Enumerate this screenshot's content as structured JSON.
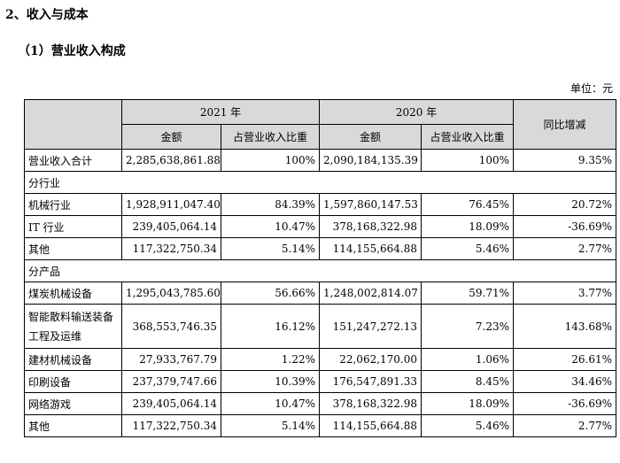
{
  "headings": {
    "section": "2、收入与成本",
    "subsection": "（1）营业收入构成"
  },
  "unit": "单位：元",
  "table": {
    "year_current": "2021 年",
    "year_prior": "2020 年",
    "col_amount": "金额",
    "col_share": "占营业收入比重",
    "col_change": "同比增减",
    "total": {
      "label": "营业收入合计",
      "amount_2021": "2,285,638,861.88",
      "share_2021": "100%",
      "amount_2020": "2,090,184,135.39",
      "share_2020": "100%",
      "change": "9.35%"
    },
    "by_industry": {
      "title": "分行业",
      "rows": [
        {
          "label": "机械行业",
          "amount_2021": "1,928,911,047.40",
          "share_2021": "84.39%",
          "amount_2020": "1,597,860,147.53",
          "share_2020": "76.45%",
          "change": "20.72%"
        },
        {
          "label": "IT 行业",
          "amount_2021": "239,405,064.14",
          "share_2021": "10.47%",
          "amount_2020": "378,168,322.98",
          "share_2020": "18.09%",
          "change": "-36.69%"
        },
        {
          "label": "其他",
          "amount_2021": "117,322,750.34",
          "share_2021": "5.14%",
          "amount_2020": "114,155,664.88",
          "share_2020": "5.46%",
          "change": "2.77%"
        }
      ]
    },
    "by_product": {
      "title": "分产品",
      "rows": [
        {
          "label": "煤炭机械设备",
          "amount_2021": "1,295,043,785.60",
          "share_2021": "56.66%",
          "amount_2020": "1,248,002,814.07",
          "share_2020": "59.71%",
          "change": "3.77%"
        },
        {
          "label": "智能散料输送装备工程及运维",
          "amount_2021": "368,553,746.35",
          "share_2021": "16.12%",
          "amount_2020": "151,247,272.13",
          "share_2020": "7.23%",
          "change": "143.68%"
        },
        {
          "label": "建材机械设备",
          "amount_2021": "27,933,767.79",
          "share_2021": "1.22%",
          "amount_2020": "22,062,170.00",
          "share_2020": "1.06%",
          "change": "26.61%"
        },
        {
          "label": "印刷设备",
          "amount_2021": "237,379,747.66",
          "share_2021": "10.39%",
          "amount_2020": "176,547,891.33",
          "share_2020": "8.45%",
          "change": "34.46%"
        },
        {
          "label": "网络游戏",
          "amount_2021": "239,405,064.14",
          "share_2021": "10.47%",
          "amount_2020": "378,168,322.98",
          "share_2020": "18.09%",
          "change": "-36.69%"
        },
        {
          "label": "其他",
          "amount_2021": "117,322,750.34",
          "share_2021": "5.14%",
          "amount_2020": "114,155,664.88",
          "share_2020": "5.46%",
          "change": "2.77%"
        }
      ]
    }
  }
}
